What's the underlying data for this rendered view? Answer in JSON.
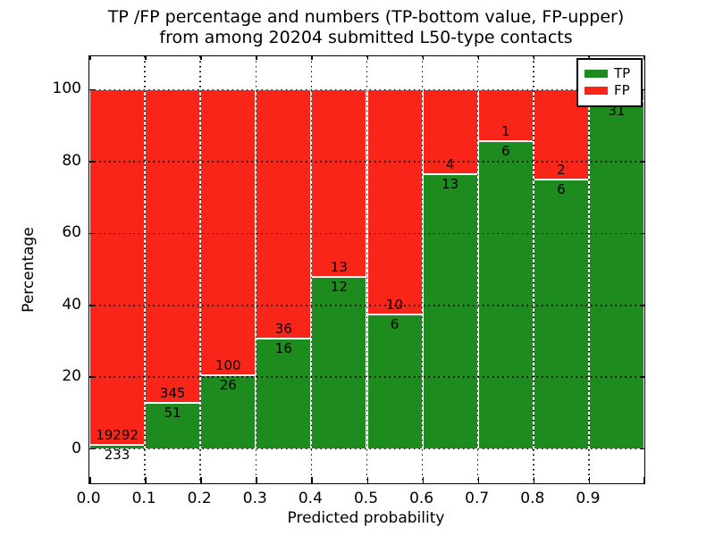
{
  "figure": {
    "title_line1": "TP /FP percentage and numbers (TP-bottom value, FP-upper)",
    "title_line2": "from among 20204 submitted L50-type contacts"
  },
  "chart_data": {
    "type": "bar",
    "subtype": "stacked-percentage",
    "title": "TP /FP percentage and numbers (TP-bottom value, FP-upper) from among 20204 submitted L50-type contacts",
    "xlabel": "Predicted probability",
    "ylabel": "Percentage",
    "xlim": [
      0.0,
      1.0
    ],
    "ylim": [
      -9.5,
      109.3
    ],
    "grid": "dotted",
    "x_tick_labels": [
      "0.0",
      "0.1",
      "0.2",
      "0.3",
      "0.4",
      "0.5",
      "0.6",
      "0.7",
      "0.8",
      "0.9"
    ],
    "y_ticks": [
      0,
      20,
      40,
      60,
      80,
      100
    ],
    "y_tick_labels": [
      "0",
      "20",
      "40",
      "60",
      "80",
      "100"
    ],
    "colors": {
      "tp": "#1e8b1e",
      "fp": "#fa2519",
      "background": "#ffffff",
      "grid": "#000000"
    },
    "legend": {
      "position": "upper right",
      "entries": [
        {
          "label": "TP",
          "color": "#1e8b1e"
        },
        {
          "label": "FP",
          "color": "#fa2519"
        }
      ]
    },
    "bars": [
      {
        "x_start": 0.0,
        "x_end": 0.1,
        "tp_count_label": "233",
        "fp_count_label": "19292",
        "tp_pct": 1.19,
        "fp_pct": 98.81
      },
      {
        "x_start": 0.1,
        "x_end": 0.2,
        "tp_count_label": "51",
        "fp_count_label": "345",
        "tp_pct": 12.88,
        "fp_pct": 87.12
      },
      {
        "x_start": 0.2,
        "x_end": 0.3,
        "tp_count_label": "26",
        "fp_count_label": "100",
        "tp_pct": 20.63,
        "fp_pct": 79.37
      },
      {
        "x_start": 0.3,
        "x_end": 0.4,
        "tp_count_label": "16",
        "fp_count_label": "36",
        "tp_pct": 30.77,
        "fp_pct": 69.23
      },
      {
        "x_start": 0.4,
        "x_end": 0.5,
        "tp_count_label": "12",
        "fp_count_label": "13",
        "tp_pct": 48.0,
        "fp_pct": 52.0
      },
      {
        "x_start": 0.5,
        "x_end": 0.6,
        "tp_count_label": "6",
        "fp_count_label": "10",
        "tp_pct": 37.5,
        "fp_pct": 62.5
      },
      {
        "x_start": 0.6,
        "x_end": 0.7,
        "tp_count_label": "13",
        "fp_count_label": "4",
        "tp_pct": 76.47,
        "fp_pct": 23.53
      },
      {
        "x_start": 0.7,
        "x_end": 0.8,
        "tp_count_label": "6",
        "fp_count_label": "1",
        "tp_pct": 85.71,
        "fp_pct": 14.29
      },
      {
        "x_start": 0.8,
        "x_end": 0.9,
        "tp_count_label": "6",
        "fp_count_label": "2",
        "tp_pct": 75.0,
        "fp_pct": 25.0
      },
      {
        "x_start": 0.9,
        "x_end": 1.0,
        "tp_count_label": "31",
        "fp_count_label": "",
        "tp_pct": 96.88,
        "fp_pct": 3.12
      }
    ]
  }
}
